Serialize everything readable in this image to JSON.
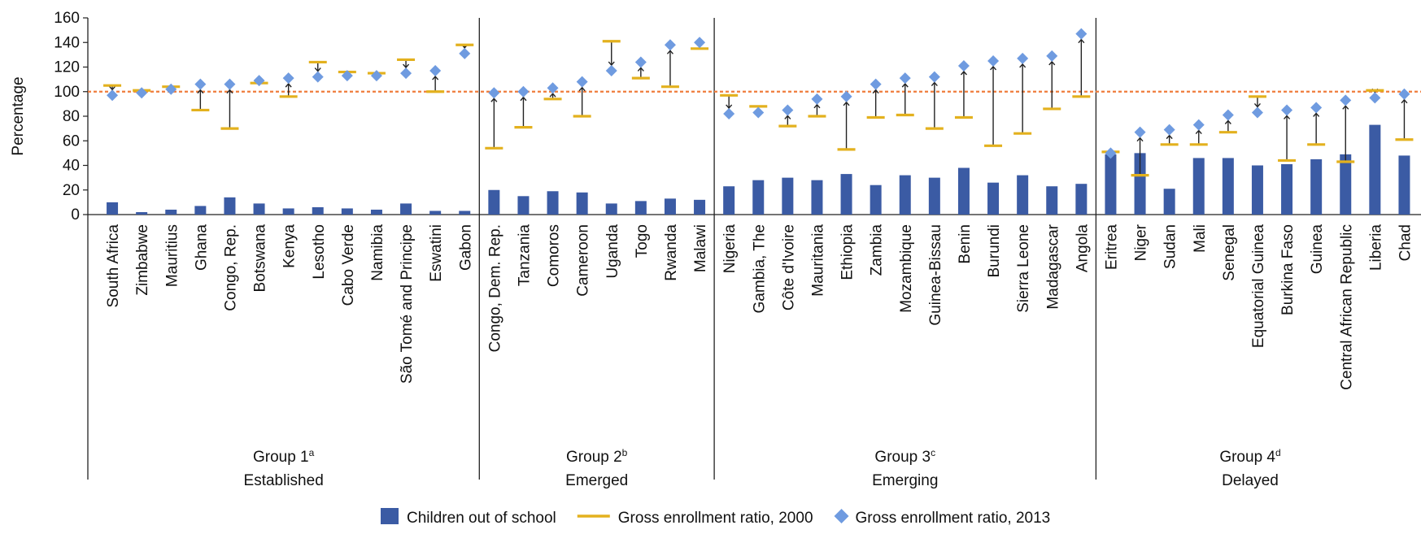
{
  "chart_data": {
    "type": "bar",
    "ylabel": "Percentage",
    "ylim": [
      0,
      160
    ],
    "yticks": [
      0,
      20,
      40,
      60,
      80,
      100,
      120,
      140,
      160
    ],
    "reference_line": 100,
    "groups": [
      {
        "label": "Group 1",
        "sup": "a",
        "sublabel": "Established",
        "countries": [
          {
            "name": "South Africa",
            "out": 10,
            "ger2000": 105,
            "ger2013": 97
          },
          {
            "name": "Zimbabwe",
            "out": 2,
            "ger2000": 101,
            "ger2013": 99
          },
          {
            "name": "Mauritius",
            "out": 4,
            "ger2000": 104,
            "ger2013": 102
          },
          {
            "name": "Ghana",
            "out": 7,
            "ger2000": 85,
            "ger2013": 106
          },
          {
            "name": "Congo, Rep.",
            "out": 14,
            "ger2000": 70,
            "ger2013": 106
          },
          {
            "name": "Botswana",
            "out": 9,
            "ger2000": 107,
            "ger2013": 109
          },
          {
            "name": "Kenya",
            "out": 5,
            "ger2000": 96,
            "ger2013": 111
          },
          {
            "name": "Lesotho",
            "out": 6,
            "ger2000": 124,
            "ger2013": 112
          },
          {
            "name": "Cabo Verde",
            "out": 5,
            "ger2000": 116,
            "ger2013": 113
          },
          {
            "name": "Namibia",
            "out": 4,
            "ger2000": 115,
            "ger2013": 113
          },
          {
            "name": "São Tomé and Principe",
            "out": 9,
            "ger2000": 126,
            "ger2013": 115
          },
          {
            "name": "Eswatini",
            "out": 3,
            "ger2000": 100,
            "ger2013": 117
          },
          {
            "name": "Gabon",
            "out": 3,
            "ger2000": 138,
            "ger2013": 131
          }
        ]
      },
      {
        "label": "Group 2",
        "sup": "b",
        "sublabel": "Emerged",
        "countries": [
          {
            "name": "Congo, Dem. Rep.",
            "out": 20,
            "ger2000": 54,
            "ger2013": 99
          },
          {
            "name": "Tanzania",
            "out": 15,
            "ger2000": 71,
            "ger2013": 100
          },
          {
            "name": "Comoros",
            "out": 19,
            "ger2000": 94,
            "ger2013": 103
          },
          {
            "name": "Cameroon",
            "out": 18,
            "ger2000": 80,
            "ger2013": 108
          },
          {
            "name": "Uganda",
            "out": 9,
            "ger2000": 141,
            "ger2013": 117
          },
          {
            "name": "Togo",
            "out": 11,
            "ger2000": 111,
            "ger2013": 124
          },
          {
            "name": "Rwanda",
            "out": 13,
            "ger2000": 104,
            "ger2013": 138
          },
          {
            "name": "Malawi",
            "out": 12,
            "ger2000": 135,
            "ger2013": 140
          }
        ]
      },
      {
        "label": "Group 3",
        "sup": "c",
        "sublabel": "Emerging",
        "countries": [
          {
            "name": "Nigeria",
            "out": 23,
            "ger2000": 97,
            "ger2013": 82
          },
          {
            "name": "Gambia, The",
            "out": 28,
            "ger2000": 88,
            "ger2013": 83
          },
          {
            "name": "Côte d'Ivoire",
            "out": 30,
            "ger2000": 72,
            "ger2013": 85
          },
          {
            "name": "Mauritania",
            "out": 28,
            "ger2000": 80,
            "ger2013": 94
          },
          {
            "name": "Ethiopia",
            "out": 33,
            "ger2000": 53,
            "ger2013": 96
          },
          {
            "name": "Zambia",
            "out": 24,
            "ger2000": 79,
            "ger2013": 106
          },
          {
            "name": "Mozambique",
            "out": 32,
            "ger2000": 81,
            "ger2013": 111
          },
          {
            "name": "Guinea-Bissau",
            "out": 30,
            "ger2000": 70,
            "ger2013": 112
          },
          {
            "name": "Benin",
            "out": 38,
            "ger2000": 79,
            "ger2013": 121
          },
          {
            "name": "Burundi",
            "out": 26,
            "ger2000": 56,
            "ger2013": 125
          },
          {
            "name": "Sierra Leone",
            "out": 32,
            "ger2000": 66,
            "ger2013": 127
          },
          {
            "name": "Madagascar",
            "out": 23,
            "ger2000": 86,
            "ger2013": 129
          },
          {
            "name": "Angola",
            "out": 25,
            "ger2000": 96,
            "ger2013": 147
          }
        ]
      },
      {
        "label": "Group 4",
        "sup": "d",
        "sublabel": "Delayed",
        "countries": [
          {
            "name": "Eritrea",
            "out": 49,
            "ger2000": 51,
            "ger2013": 50
          },
          {
            "name": "Niger",
            "out": 50,
            "ger2000": 32,
            "ger2013": 67
          },
          {
            "name": "Sudan",
            "out": 21,
            "ger2000": 57,
            "ger2013": 69
          },
          {
            "name": "Mali",
            "out": 46,
            "ger2000": 57,
            "ger2013": 73
          },
          {
            "name": "Senegal",
            "out": 46,
            "ger2000": 67,
            "ger2013": 81
          },
          {
            "name": "Equatorial Guinea",
            "out": 40,
            "ger2000": 96,
            "ger2013": 83
          },
          {
            "name": "Burkina Faso",
            "out": 41,
            "ger2000": 44,
            "ger2013": 85
          },
          {
            "name": "Guinea",
            "out": 45,
            "ger2000": 57,
            "ger2013": 87
          },
          {
            "name": "Central African Republic",
            "out": 49,
            "ger2000": 43,
            "ger2013": 93
          },
          {
            "name": "Liberia",
            "out": 73,
            "ger2000": 101,
            "ger2013": 95
          },
          {
            "name": "Chad",
            "out": 48,
            "ger2000": 61,
            "ger2013": 98
          }
        ]
      }
    ],
    "legend": [
      {
        "key": "out",
        "label": "Children out of school"
      },
      {
        "key": "ger2000",
        "label": "Gross enrollment ratio, 2000"
      },
      {
        "key": "ger2013",
        "label": "Gross enrollment ratio, 2013"
      }
    ]
  },
  "colors": {
    "bar": "#3b5ba4",
    "ger2000": "#e3b11e",
    "ger2013": "#6f9be0",
    "reference": "#ef7c3b",
    "connector": "#222222",
    "axis": "#222222"
  }
}
